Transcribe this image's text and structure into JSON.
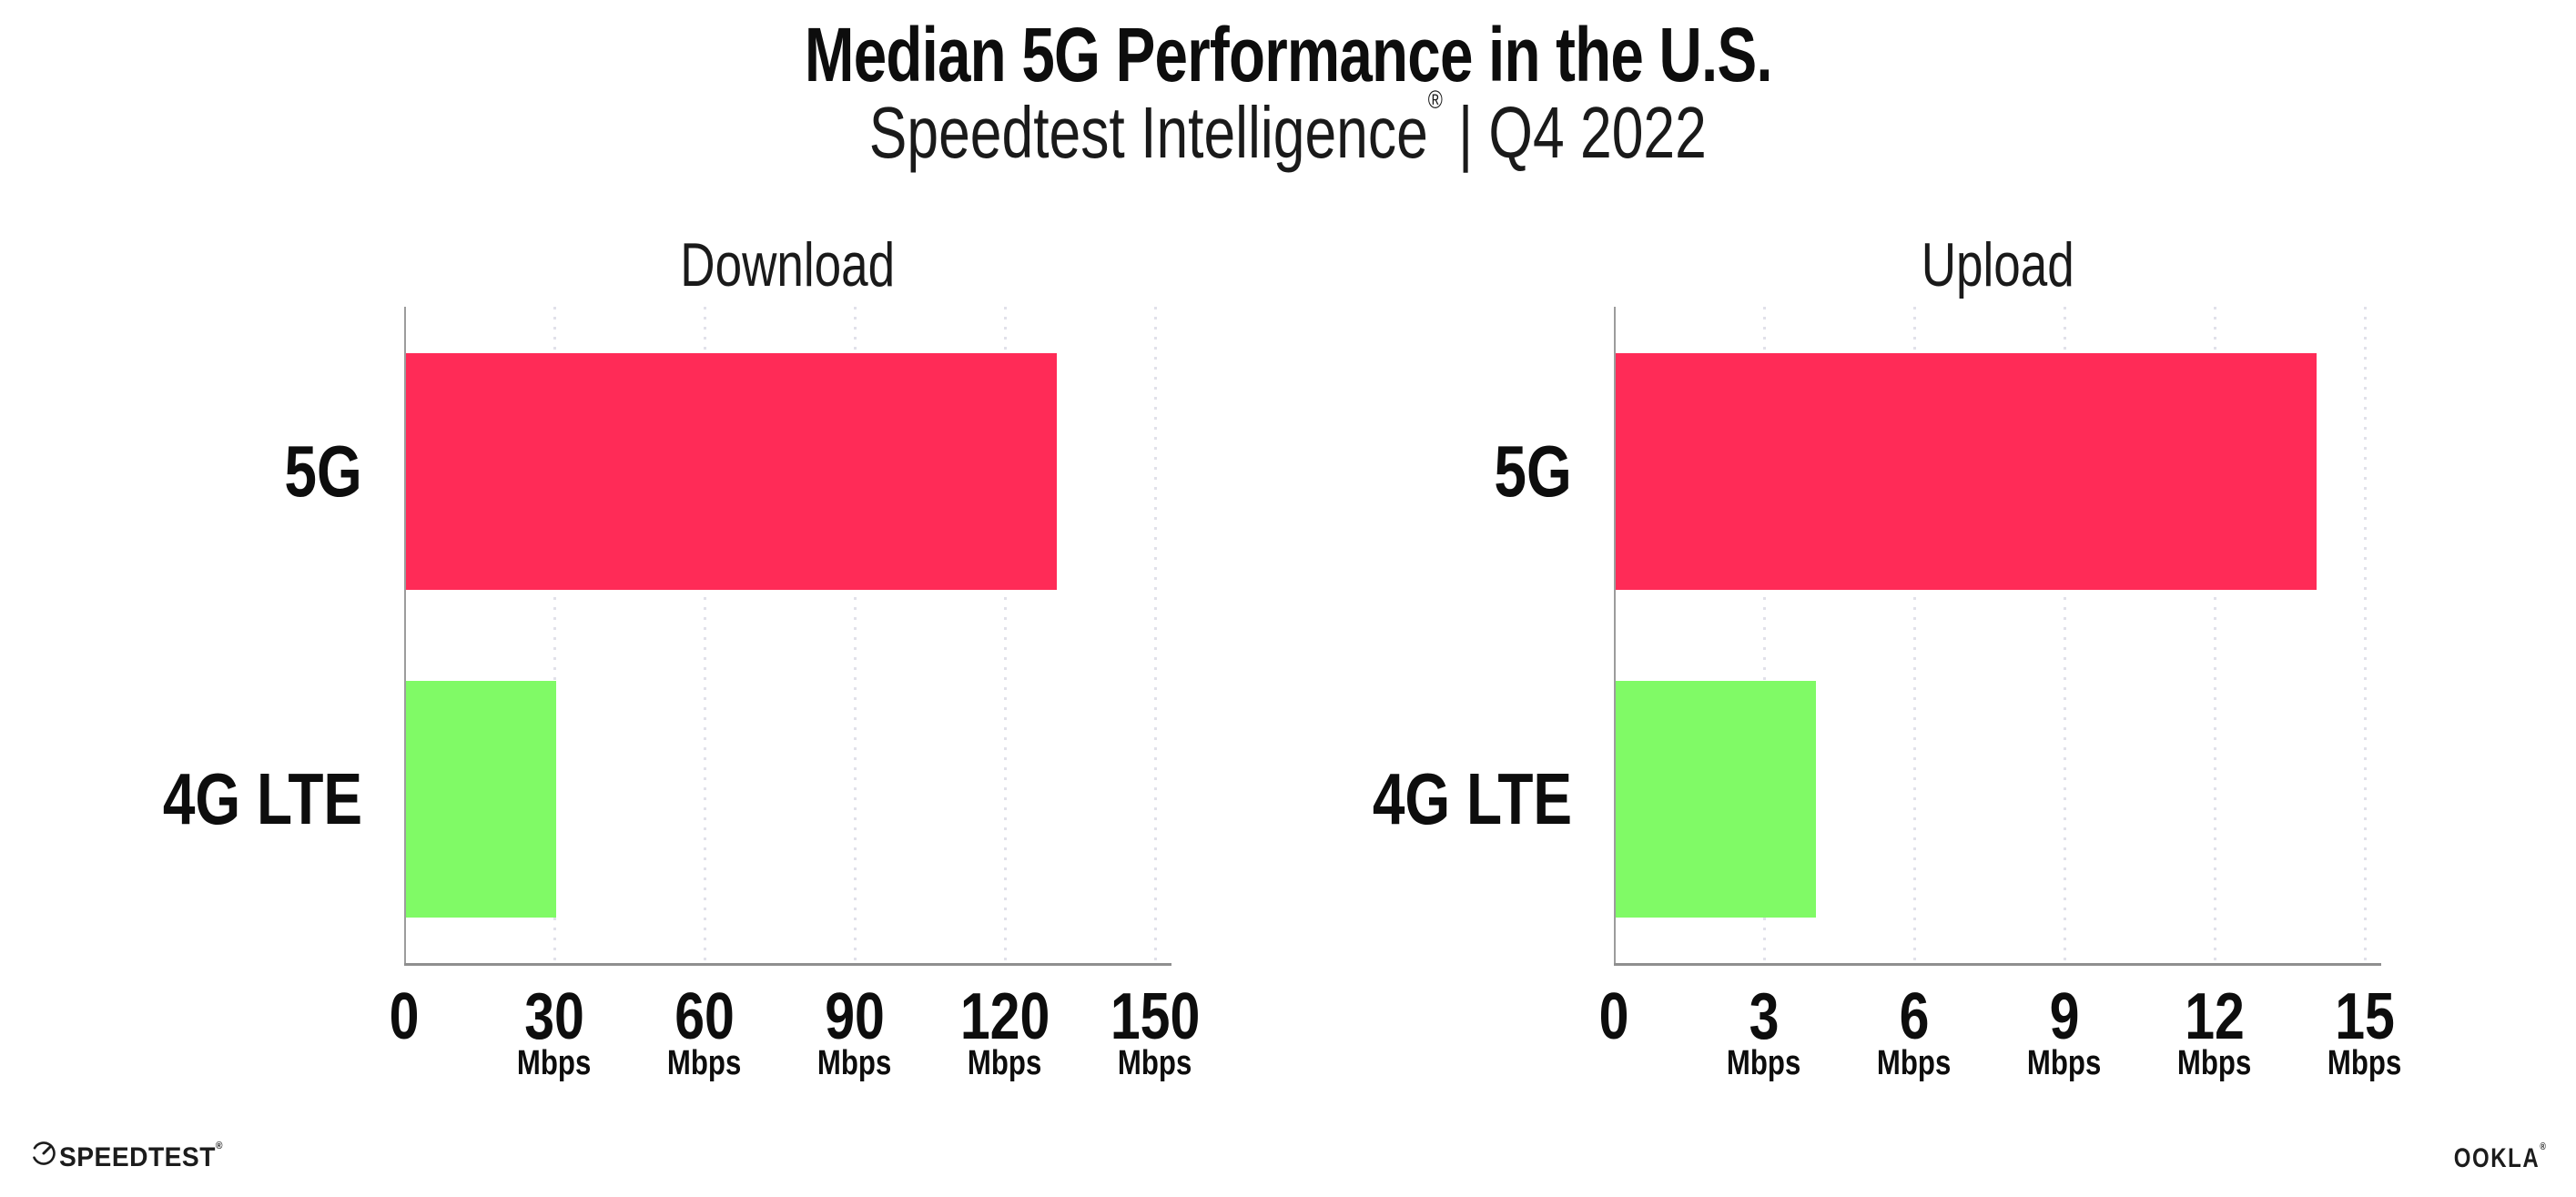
{
  "header": {
    "title": "Median 5G Performance in the U.S.",
    "subtitle_product": "Speedtest Intelligence",
    "subtitle_reg_mark": "®",
    "subtitle_separator": "|",
    "subtitle_period": "Q4 2022"
  },
  "chart_data": [
    {
      "type": "bar",
      "orientation": "horizontal",
      "title": "Download",
      "categories": [
        "5G",
        "4G LTE"
      ],
      "values": [
        130,
        30
      ],
      "unit": "Mbps",
      "xlim": [
        0,
        150
      ],
      "xticks": [
        0,
        30,
        60,
        90,
        120,
        150
      ],
      "tick_unit_label": "Mbps",
      "grid": "dotted-vertical",
      "legend": "none",
      "bar_colors": [
        "#FF2B57",
        "#80FA66"
      ]
    },
    {
      "type": "bar",
      "orientation": "horizontal",
      "title": "Upload",
      "categories": [
        "5G",
        "4G LTE"
      ],
      "values": [
        14,
        4
      ],
      "unit": "Mbps",
      "xlim": [
        0,
        15
      ],
      "xticks": [
        0,
        3,
        6,
        9,
        12,
        15
      ],
      "tick_unit_label": "Mbps",
      "grid": "dotted-vertical",
      "legend": "none",
      "bar_colors": [
        "#FF2B57",
        "#80FA66"
      ]
    }
  ],
  "footer": {
    "speedtest_wordmark": "SPEEDTEST",
    "speedtest_trademark": "®",
    "ookla_wordmark": "OOKLA",
    "ookla_trademark": "®"
  },
  "colors": {
    "bar_5g": "#FF2B57",
    "bar_4g_lte": "#80FA66",
    "axis_line": "#9c9c9c",
    "gridline_dot": "#e1e1ea",
    "text": "#141414",
    "background": "#ffffff"
  }
}
